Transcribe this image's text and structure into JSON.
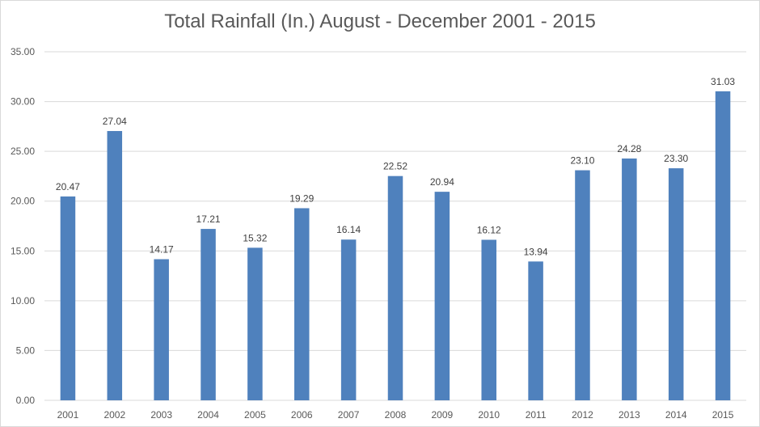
{
  "chart_data": {
    "type": "bar",
    "title": "Total Rainfall (In.) August - December 2001 - 2015",
    "xlabel": "",
    "ylabel": "",
    "categories": [
      "2001",
      "2002",
      "2003",
      "2004",
      "2005",
      "2006",
      "2007",
      "2008",
      "2009",
      "2010",
      "2011",
      "2012",
      "2013",
      "2014",
      "2015"
    ],
    "values": [
      20.47,
      27.04,
      14.17,
      17.21,
      15.32,
      19.29,
      16.14,
      22.52,
      20.94,
      16.12,
      13.94,
      23.1,
      24.28,
      23.3,
      31.03
    ],
    "data_labels": [
      "20.47",
      "27.04",
      "14.17",
      "17.21",
      "15.32",
      "19.29",
      "16.14",
      "22.52",
      "20.94",
      "16.12",
      "13.94",
      "23.10",
      "24.28",
      "23.30",
      "31.03"
    ],
    "ylim": [
      0,
      35
    ],
    "yticks": [
      "0.00",
      "5.00",
      "10.00",
      "15.00",
      "20.00",
      "25.00",
      "30.00",
      "35.00"
    ],
    "grid": true,
    "legend": "none",
    "bar_color": "#4F81BD",
    "grid_color": "#D9D9D9"
  }
}
